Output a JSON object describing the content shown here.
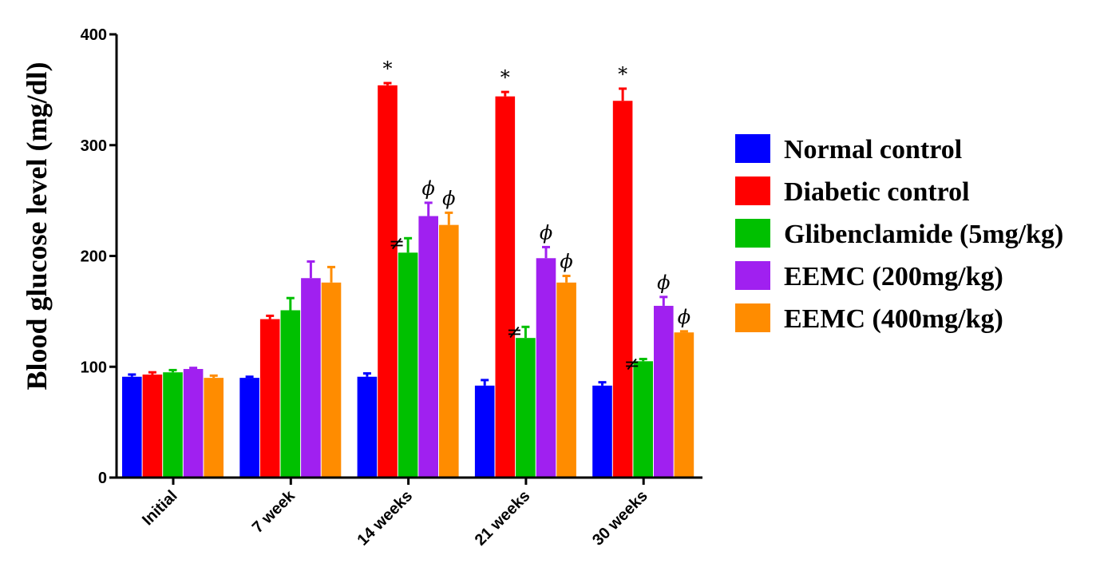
{
  "chart_data": {
    "type": "bar",
    "title": "",
    "xlabel": "",
    "ylabel": "Blood glucose level (mg/dl)",
    "ylim": [
      0,
      400
    ],
    "yticks": [
      "0",
      "100",
      "200",
      "300",
      "400"
    ],
    "categories": [
      "Initial",
      "7 week",
      "14 weeks",
      "21 weeks",
      "30 weeks"
    ],
    "legend_position": "right",
    "series": [
      {
        "name": "Normal control",
        "color": "#0000ff",
        "values": [
          91,
          90,
          91,
          83,
          83
        ],
        "errors": [
          2,
          1,
          3,
          5,
          3
        ],
        "annotations": [
          "",
          "",
          "",
          "",
          ""
        ]
      },
      {
        "name": "Diabetic control",
        "color": "#ff0000",
        "values": [
          93,
          143,
          354,
          344,
          340
        ],
        "errors": [
          2,
          3,
          2,
          4,
          11
        ],
        "annotations": [
          "",
          "",
          "*",
          "*",
          "*"
        ]
      },
      {
        "name": "Glibenclamide (5mg/kg)",
        "color": "#00c000",
        "values": [
          95,
          151,
          203,
          126,
          105
        ],
        "errors": [
          2,
          11,
          13,
          10,
          2
        ],
        "annotations": [
          "",
          "",
          "≠",
          "≠",
          "≠"
        ]
      },
      {
        "name": "EEMC (200mg/kg)",
        "color": "#a020f0",
        "values": [
          98,
          180,
          236,
          198,
          155
        ],
        "errors": [
          1,
          15,
          12,
          10,
          8
        ],
        "annotations": [
          "",
          "",
          "ϕ",
          "ϕ",
          "ϕ"
        ]
      },
      {
        "name": "EEMC (400mg/kg)",
        "color": "#ff8c00",
        "values": [
          90,
          176,
          228,
          176,
          131
        ],
        "errors": [
          2,
          14,
          11,
          6,
          1
        ],
        "annotations": [
          "",
          "",
          "ϕ",
          "ϕ",
          "ϕ"
        ]
      }
    ]
  }
}
